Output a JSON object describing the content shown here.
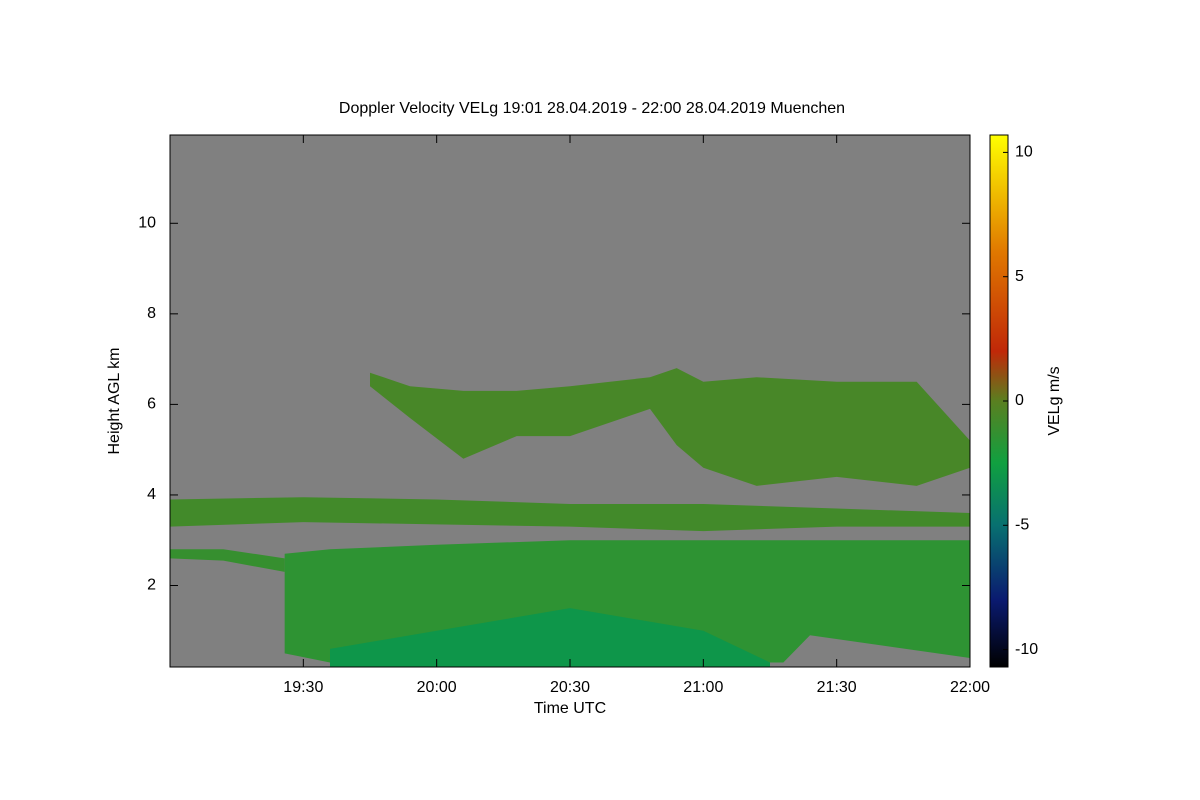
{
  "chart_data": {
    "type": "heatmap",
    "title": "Doppler Velocity VELg   19:01 28.04.2019 - 22:00 28.04.2019 Muenchen",
    "x_label": "Time UTC",
    "y_label": "Height AGL km",
    "colorbar_label": "VELg m/s",
    "xlim": [
      19.0,
      22.0
    ],
    "xticks": [
      {
        "value": 19.5,
        "label": "19:30"
      },
      {
        "value": 20.0,
        "label": "20:00"
      },
      {
        "value": 20.5,
        "label": "20:30"
      },
      {
        "value": 21.0,
        "label": "21:00"
      },
      {
        "value": 21.5,
        "label": "21:30"
      },
      {
        "value": 22.0,
        "label": "22:00"
      }
    ],
    "ylim": [
      0.2,
      11.95
    ],
    "yticks": [
      2,
      4,
      6,
      8,
      10
    ],
    "zlim": [
      -10.7,
      10.7
    ],
    "zticks": [
      10,
      5,
      0,
      -5,
      -10
    ],
    "background": "#808080",
    "colormap": [
      {
        "value": -10.7,
        "color": "#000000"
      },
      {
        "value": -8,
        "color": "#0a1a70"
      },
      {
        "value": -5,
        "color": "#087070"
      },
      {
        "value": -2.5,
        "color": "#10a040"
      },
      {
        "value": 0,
        "color": "#5a7f20"
      },
      {
        "value": 2,
        "color": "#c02808"
      },
      {
        "value": 6,
        "color": "#e07800"
      },
      {
        "value": 10.7,
        "color": "#ffff00"
      }
    ],
    "regions": [
      {
        "x": [
          19.0,
          19.5,
          20.0,
          20.5,
          21.0,
          21.5,
          22.0
        ],
        "top": [
          3.9,
          3.95,
          3.9,
          3.8,
          3.8,
          3.7,
          3.6
        ],
        "bottom": [
          3.3,
          3.4,
          3.35,
          3.3,
          3.2,
          3.3,
          3.3
        ],
        "value": -0.8
      },
      {
        "x": [
          19.0,
          19.2,
          19.43
        ],
        "top": [
          2.8,
          2.8,
          2.6
        ],
        "bottom": [
          2.6,
          2.55,
          2.3
        ],
        "value": -1.2
      },
      {
        "x": [
          19.43,
          19.6,
          20.0,
          20.5,
          21.0,
          21.3,
          21.4,
          22.0
        ],
        "top": [
          2.7,
          2.8,
          2.9,
          3.0,
          3.0,
          3.0,
          3.0,
          3.0
        ],
        "bottom": [
          0.5,
          0.3,
          0.3,
          0.3,
          0.3,
          0.3,
          0.9,
          0.4
        ],
        "value": -1.5
      },
      {
        "x": [
          19.6,
          20.0,
          20.5,
          21.0,
          21.25
        ],
        "top": [
          0.6,
          1.0,
          1.5,
          1.0,
          0.3
        ],
        "bottom": [
          0.2,
          0.2,
          0.2,
          0.2,
          0.2
        ],
        "value": -3
      },
      {
        "x": [
          19.75,
          19.9,
          20.1,
          20.3,
          20.5,
          20.8,
          20.9,
          21.0,
          21.2,
          21.5,
          21.8,
          22.0
        ],
        "top": [
          6.7,
          6.4,
          6.3,
          6.3,
          6.4,
          6.6,
          6.8,
          6.5,
          6.6,
          6.5,
          6.5,
          5.2
        ],
        "bottom": [
          6.4,
          5.7,
          4.8,
          5.3,
          5.3,
          5.9,
          5.1,
          4.6,
          4.2,
          4.4,
          4.2,
          4.6
        ],
        "value": -0.6
      }
    ]
  }
}
